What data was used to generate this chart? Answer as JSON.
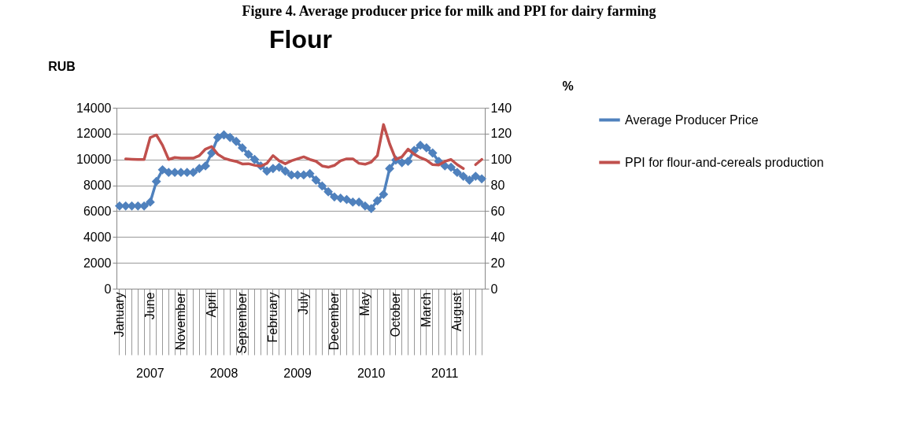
{
  "chart_data": {
    "type": "line",
    "title": "Flour",
    "ylabel": "RUB",
    "y2label": "%",
    "annotations": [
      "Figure 4. Average producer price for milk and PPI for dairy farming",
      "2007",
      "2008",
      "2009",
      "2010",
      "2011"
    ],
    "categories": [
      "January",
      null,
      null,
      null,
      null,
      "June",
      null,
      null,
      null,
      null,
      "November",
      null,
      null,
      null,
      null,
      "April",
      null,
      null,
      null,
      null,
      "September",
      null,
      null,
      null,
      null,
      "February",
      null,
      null,
      null,
      null,
      "July",
      null,
      null,
      null,
      null,
      "December",
      null,
      null,
      null,
      null,
      "May",
      null,
      null,
      null,
      null,
      "October",
      null,
      null,
      null,
      null,
      "March",
      null,
      null,
      null,
      null,
      "August",
      null,
      null,
      null,
      null
    ],
    "series": [
      {
        "name": "Average Producer Price",
        "color": "#4f81bd",
        "marker": "diamond",
        "values": [
          6400,
          6400,
          6400,
          6400,
          6400,
          6700,
          8300,
          9200,
          9000,
          9000,
          9000,
          9000,
          9000,
          9300,
          9500,
          10500,
          11700,
          11900,
          11700,
          11400,
          10900,
          10400,
          10000,
          9500,
          9100,
          9300,
          9400,
          9100,
          8800,
          8800,
          8800,
          8900,
          8400,
          7950,
          7500,
          7100,
          7000,
          6900,
          6700,
          6700,
          6400,
          6200,
          6800,
          7300,
          9300,
          9950,
          9750,
          9850,
          10700,
          11100,
          10900,
          10500,
          9850,
          9500,
          9400,
          9000,
          8700,
          8400,
          8700,
          8500
        ]
      },
      {
        "name": "PPI for flour-and-cereals production",
        "color": "#c0504d",
        "marker": "none",
        "axis": "y2",
        "values": [
          null,
          100.5,
          100.2,
          100,
          100,
          117,
          119,
          111,
          100,
          101.5,
          101,
          101,
          101,
          103,
          108,
          110,
          104,
          101,
          99.5,
          98.5,
          96.5,
          96.7,
          95.5,
          94.8,
          97,
          103,
          99,
          96.7,
          99,
          100.5,
          102,
          100,
          98.6,
          95,
          94,
          95.4,
          99,
          100.5,
          100.5,
          97,
          96.3,
          98,
          103,
          127,
          112,
          100,
          102,
          108,
          104,
          101.4,
          99.5,
          96,
          95.7,
          98.5,
          100,
          96,
          93,
          null,
          96,
          100
        ]
      }
    ],
    "ylim": [
      0,
      14000
    ],
    "yticks": [
      0,
      2000,
      4000,
      6000,
      8000,
      10000,
      12000,
      14000
    ],
    "y2lim": [
      0,
      140
    ],
    "y2ticks": [
      0,
      20,
      40,
      60,
      80,
      100,
      120,
      140
    ],
    "grid": "y",
    "legend": "right",
    "line_style": "solid"
  }
}
